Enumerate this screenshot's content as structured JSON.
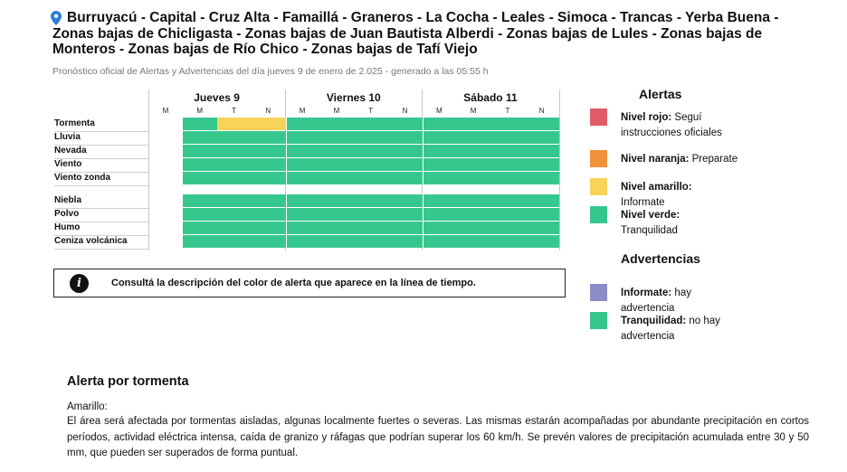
{
  "header": {
    "title": "Burruyacú - Capital - Cruz Alta - Famaillá - Graneros - La Cocha - Leales - Simoca - Trancas - Yerba Buena - Zonas bajas de Chicligasta - Zonas bajas de Juan Bautista Alberdi - Zonas bajas de Lules - Zonas bajas de Monteros - Zonas bajas de Río Chico - Zonas bajas de Tafí Viejo",
    "subtitle": "Pronóstico oficial de Alertas y Advertencias del día jueves 9 de enero de 2.025 - generado a las 05:55 h",
    "pin_icon": "map-pin-icon"
  },
  "colors": {
    "red": "#e05c68",
    "orange": "#f0913c",
    "yellow": "#f8d35a",
    "green": "#36c78f",
    "violet": "#8e8bc9"
  },
  "timeline": {
    "days": [
      {
        "label": "Jueves 9",
        "slots": [
          "M",
          "M",
          "T",
          "N"
        ]
      },
      {
        "label": "Viernes 10",
        "slots": [
          "M",
          "M",
          "T",
          "N"
        ]
      },
      {
        "label": "Sábado 11",
        "slots": [
          "M",
          "M",
          "T",
          "N"
        ]
      }
    ],
    "rows": [
      {
        "label": "Tormenta",
        "levels": [
          "none",
          "green",
          "yellow",
          "yellow",
          "green",
          "green",
          "green",
          "green",
          "green",
          "green",
          "green",
          "green"
        ]
      },
      {
        "label": "Lluvia",
        "levels": [
          "none",
          "green",
          "green",
          "green",
          "green",
          "green",
          "green",
          "green",
          "green",
          "green",
          "green",
          "green"
        ]
      },
      {
        "label": "Nevada",
        "levels": [
          "none",
          "green",
          "green",
          "green",
          "green",
          "green",
          "green",
          "green",
          "green",
          "green",
          "green",
          "green"
        ]
      },
      {
        "label": "Viento",
        "levels": [
          "none",
          "green",
          "green",
          "green",
          "green",
          "green",
          "green",
          "green",
          "green",
          "green",
          "green",
          "green"
        ]
      },
      {
        "label": "Viento zonda",
        "levels": [
          "none",
          "green",
          "green",
          "green",
          "green",
          "green",
          "green",
          "green",
          "green",
          "green",
          "green",
          "green"
        ]
      },
      {
        "label": "Niebla",
        "levels": [
          "none",
          "green",
          "green",
          "green",
          "green",
          "green",
          "green",
          "green",
          "green",
          "green",
          "green",
          "green"
        ]
      },
      {
        "label": "Polvo",
        "levels": [
          "none",
          "green",
          "green",
          "green",
          "green",
          "green",
          "green",
          "green",
          "green",
          "green",
          "green",
          "green"
        ]
      },
      {
        "label": "Humo",
        "levels": [
          "none",
          "green",
          "green",
          "green",
          "green",
          "green",
          "green",
          "green",
          "green",
          "green",
          "green",
          "green"
        ]
      },
      {
        "label": "Ceniza volcánica",
        "levels": [
          "none",
          "green",
          "green",
          "green",
          "green",
          "green",
          "green",
          "green",
          "green",
          "green",
          "green",
          "green"
        ]
      }
    ]
  },
  "info": {
    "icon": "info-icon",
    "text": "Consultá la descripción del color de alerta que aparece en la línea de tiempo."
  },
  "legend": {
    "alerts_title": "Alertas",
    "alerts": [
      {
        "color": "red",
        "label": "Nivel rojo:",
        "desc": "Seguí instrucciones oficiales"
      },
      {
        "color": "orange",
        "label": "Nivel naranja:",
        "desc": "Preparate"
      },
      {
        "color": "yellow",
        "label": "Nivel amarillo:",
        "desc": "Informate"
      },
      {
        "color": "green",
        "label": "Nivel verde:",
        "desc": "Tranquilidad"
      }
    ],
    "warnings_title": "Advertencias",
    "warnings": [
      {
        "color": "violet",
        "label": "Informate:",
        "desc": "hay advertencia"
      },
      {
        "color": "green",
        "label": "Tranquilidad:",
        "desc": "no hay advertencia"
      }
    ]
  },
  "alert_detail": {
    "title": "Alerta por tormenta",
    "level": "Amarillo:",
    "body": "El área será afectada por tormentas aisladas, algunas localmente fuertes o severas. Las mismas estarán acompañadas por abundante precipitación en cortos períodos, actividad eléctrica intensa, caída de granizo y ráfagas que podrían superar los 60 km/h. Se prevén valores de precipitación acumulada entre 30 y 50 mm, que pueden ser superados de forma puntual."
  }
}
